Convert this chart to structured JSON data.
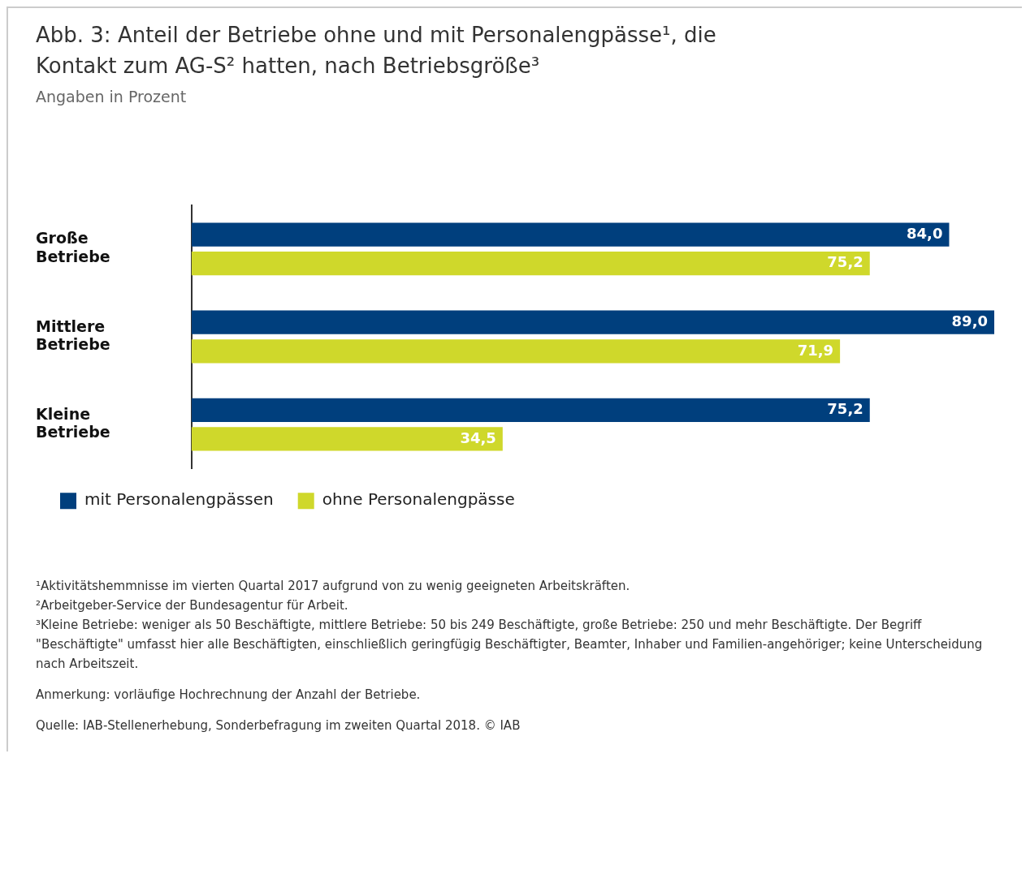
{
  "chart_data": {
    "type": "bar",
    "orientation": "horizontal",
    "xlim": [
      0,
      89
    ],
    "title": "Abb. 3: Anteil der Betriebe ohne und mit Personalengpässe¹, die Kontakt zum AG-S² hatten, nach Betriebsgröße³",
    "subtitle": "Angaben in Prozent",
    "categories": [
      "Große Betriebe",
      "Mittlere Betriebe",
      "Kleine Betriebe"
    ],
    "series": [
      {
        "name": "mit Personalengpässen",
        "color": "#003f7d",
        "values": [
          84.0,
          89.0,
          75.2
        ],
        "value_labels": [
          "84,0",
          "89,0",
          "75,2"
        ]
      },
      {
        "name": "ohne Personalengpässe",
        "color": "#cfd82b",
        "values": [
          75.2,
          71.9,
          34.5
        ],
        "value_labels": [
          "75,2",
          "71,9",
          "34,5"
        ]
      }
    ],
    "legend": "bottom",
    "annotations": [
      "¹Aktivitätshemmnisse im vierten Quartal 2017 aufgrund von zu wenig geeigneten Arbeitskräften.",
      "²Arbeitgeber-Service der Bundesagentur für Arbeit.",
      "³Kleine Betriebe: weniger als 50 Beschäftigte, mittlere Betriebe: 50 bis 249 Beschäftigte, große Betriebe: 250 und mehr Beschäftigte. Der Begriff \"Beschäftigte\" umfasst hier alle Beschäftigten, einschließlich geringfügig Beschäftigter, Beamter, Inhaber und Familien-angehöriger; keine Unterscheidung nach Arbeitszeit.",
      "Anmerkung: vorläufige Hochrechnung der Anzahl der Betriebe.",
      "Quelle: IAB-Stellenerhebung, Sonderbefragung im zweiten Quartal 2018. © IAB"
    ]
  }
}
